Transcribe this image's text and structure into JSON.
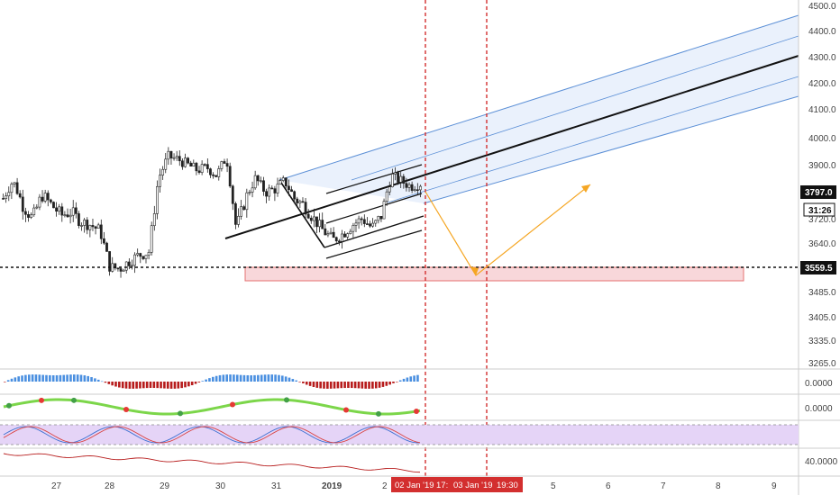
{
  "colors": {
    "up": "#222222",
    "down": "#222222",
    "channel_line": "#5b8fd6",
    "channel_fill": "#dce9fb",
    "median_line": "#111111",
    "projection_arrow": "#f5a623",
    "support_zone_fill": "#f8d7da",
    "support_zone_stroke": "#e57373",
    "vertical_marker": "#d32f2f",
    "stoch_band": "#e5d4f7",
    "histogram_up": "#4a8fe0",
    "histogram_down": "#b71c1c"
  },
  "chart_data": [
    {
      "type": "candlestick",
      "title": "",
      "price_axis": {
        "ticks": [
          "4500.0",
          "4400.0",
          "4300.0",
          "4200.0",
          "4100.0",
          "4000.0",
          "3900.0",
          "3797.0",
          "3720.0",
          "3640.0",
          "3559.5",
          "3485.0",
          "3405.0",
          "3335.0",
          "3265.0"
        ],
        "ylim": [
          3265,
          4500
        ]
      },
      "time_axis": {
        "ticks": [
          "27",
          "28",
          "29",
          "30",
          "31",
          "2019",
          "2",
          "02 Jan '19",
          "17:",
          "03 Jan '19",
          "19:30",
          "5",
          "6",
          "7",
          "8",
          "9"
        ]
      },
      "price_path": [
        3780,
        3840,
        3760,
        3720,
        3790,
        3760,
        3730,
        3740,
        3710,
        3700,
        3680,
        3560,
        3555,
        3580,
        3600,
        3610,
        3850,
        3930,
        3920,
        3900,
        3880,
        3890,
        3860,
        3930,
        3690,
        3780,
        3850,
        3800,
        3810,
        3840,
        3780,
        3760,
        3720,
        3680,
        3650,
        3670,
        3700,
        3720,
        3690,
        3730,
        3860,
        3840,
        3820,
        3830
      ],
      "current_price": "3797.0",
      "countdown": "31:26",
      "support_level": "3559.5",
      "support_zone": [
        3520,
        3560
      ],
      "projection_path": [
        [
          2,
          3790
        ],
        [
          3,
          3560
        ],
        [
          4,
          3830
        ]
      ],
      "vertical_markers": [
        "02 Jan '19 17:",
        "03 Jan '19 19:30"
      ],
      "grid": false
    },
    {
      "type": "histogram",
      "title": "",
      "ticks": [
        "0.0000"
      ]
    },
    {
      "type": "line",
      "title": "",
      "ticks": [
        "0.0000"
      ]
    },
    {
      "type": "line",
      "title": "",
      "ticks": []
    },
    {
      "type": "line",
      "title": "",
      "ticks": [
        "40.0000"
      ]
    }
  ]
}
